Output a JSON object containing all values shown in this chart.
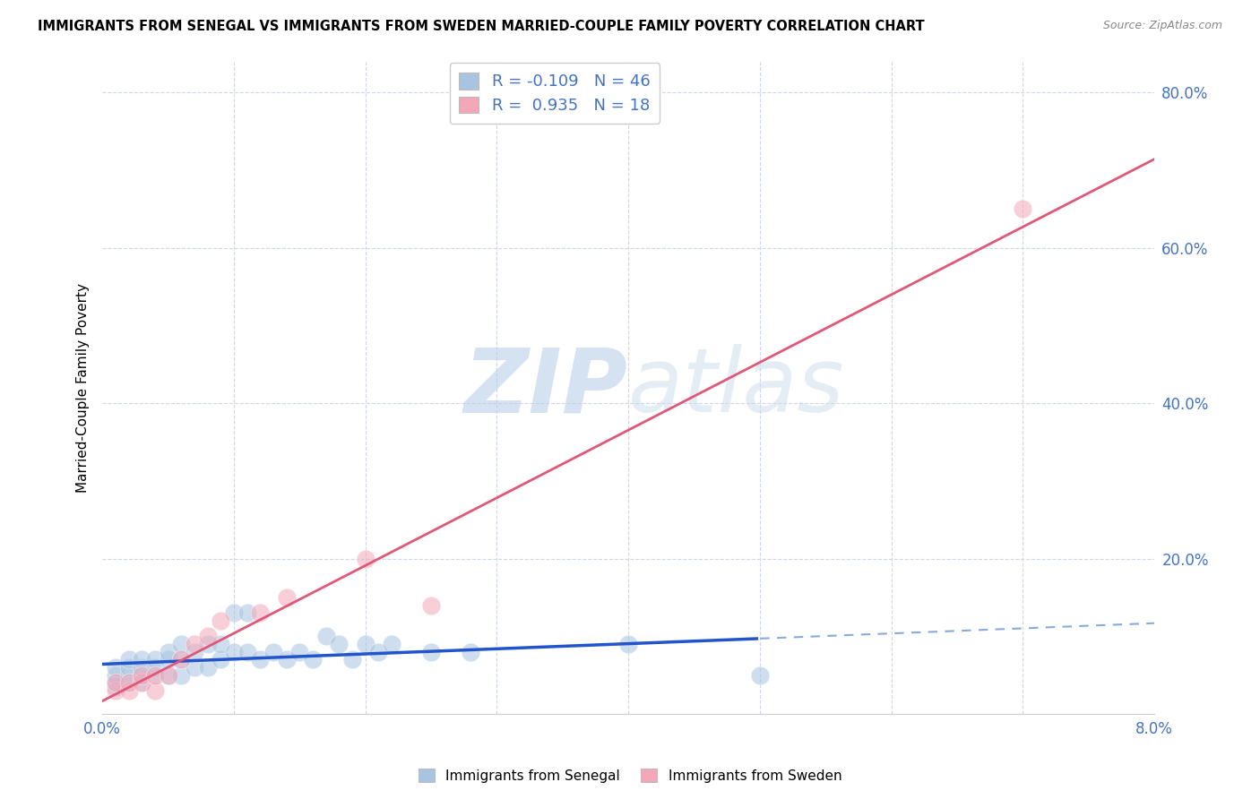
{
  "title": "IMMIGRANTS FROM SENEGAL VS IMMIGRANTS FROM SWEDEN MARRIED-COUPLE FAMILY POVERTY CORRELATION CHART",
  "source": "Source: ZipAtlas.com",
  "ylabel": "Married-Couple Family Poverty",
  "xlim": [
    0.0,
    0.08
  ],
  "ylim": [
    0.0,
    0.84
  ],
  "yticks": [
    0.0,
    0.2,
    0.4,
    0.6,
    0.8
  ],
  "ytick_labels": [
    "",
    "20.0%",
    "40.0%",
    "60.0%",
    "80.0%"
  ],
  "xtick_labels": [
    "0.0%",
    "",
    "",
    "",
    "",
    "",
    "",
    "",
    "8.0%"
  ],
  "senegal_color": "#a8c4e0",
  "sweden_color": "#f4a7b9",
  "watermark_color": "#d0e4f0",
  "axis_color": "#4472c4",
  "grid_color": "#d0d8e8",
  "senegal_line_color": "#2255cc",
  "sweden_line_color": "#e05878",
  "senegal_x": [
    0.001,
    0.001,
    0.001,
    0.001,
    0.002,
    0.002,
    0.002,
    0.002,
    0.003,
    0.003,
    0.003,
    0.003,
    0.004,
    0.004,
    0.004,
    0.005,
    0.005,
    0.005,
    0.006,
    0.006,
    0.006,
    0.007,
    0.007,
    0.008,
    0.008,
    0.009,
    0.009,
    0.01,
    0.01,
    0.011,
    0.011,
    0.012,
    0.013,
    0.014,
    0.015,
    0.016,
    0.017,
    0.018,
    0.019,
    0.02,
    0.021,
    0.022,
    0.025,
    0.04,
    0.05,
    0.028
  ],
  "senegal_y": [
    0.035,
    0.04,
    0.05,
    0.06,
    0.04,
    0.05,
    0.06,
    0.07,
    0.04,
    0.05,
    0.06,
    0.07,
    0.05,
    0.06,
    0.07,
    0.05,
    0.07,
    0.08,
    0.05,
    0.07,
    0.09,
    0.06,
    0.08,
    0.06,
    0.09,
    0.07,
    0.09,
    0.08,
    0.13,
    0.08,
    0.13,
    0.07,
    0.08,
    0.07,
    0.08,
    0.07,
    0.1,
    0.09,
    0.07,
    0.09,
    0.08,
    0.09,
    0.08,
    0.09,
    0.05,
    0.08
  ],
  "sweden_x": [
    0.001,
    0.001,
    0.002,
    0.002,
    0.003,
    0.003,
    0.004,
    0.004,
    0.005,
    0.006,
    0.007,
    0.008,
    0.009,
    0.012,
    0.014,
    0.02,
    0.025,
    0.07
  ],
  "sweden_y": [
    0.03,
    0.04,
    0.03,
    0.04,
    0.04,
    0.05,
    0.03,
    0.05,
    0.05,
    0.07,
    0.09,
    0.1,
    0.12,
    0.13,
    0.15,
    0.2,
    0.14,
    0.65
  ]
}
